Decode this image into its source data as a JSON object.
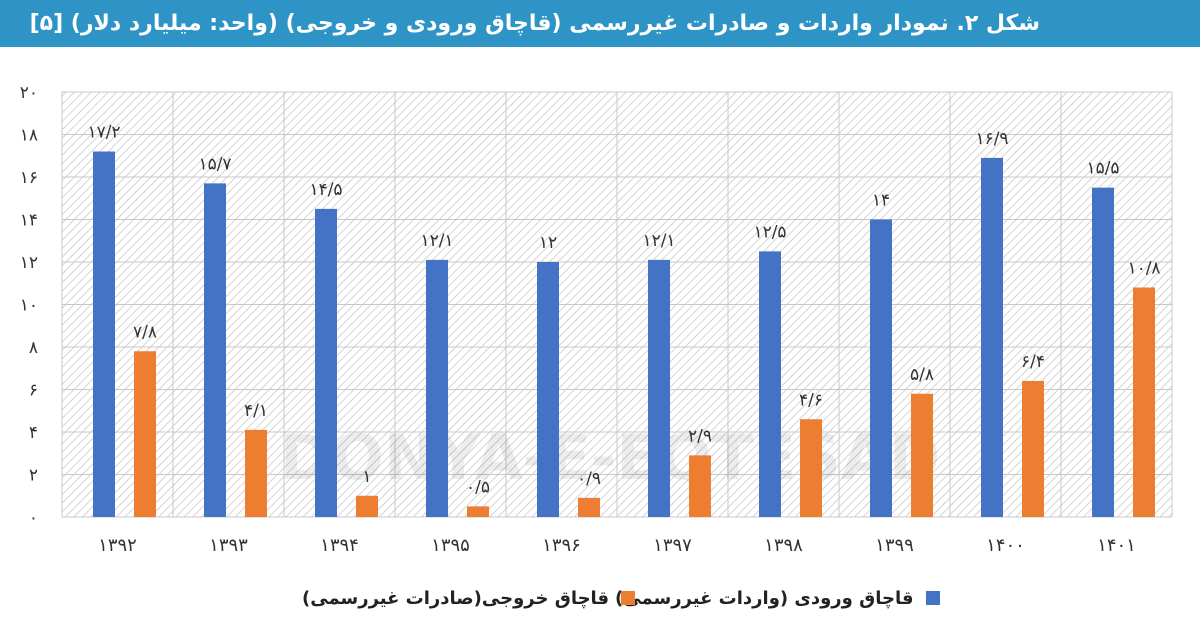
{
  "title": "شکل ۲. نمودار واردات و صادرات غیررسمی (قاچاق ورودی و خروجی) (واحد: میلیارد دلار) [۵]",
  "colors": {
    "title_bar": "#2e94c6",
    "series_in": "#4472c4",
    "series_out": "#ed7d31"
  },
  "watermark_text": "DONYA-E-EQTESAD",
  "chart_data": {
    "type": "bar",
    "categories": [
      "۱۳۹۲",
      "۱۳۹۳",
      "۱۳۹۴",
      "۱۳۹۵",
      "۱۳۹۶",
      "۱۳۹۷",
      "۱۳۹۸",
      "۱۳۹۹",
      "۱۴۰۰",
      "۱۴۰۱"
    ],
    "series": [
      {
        "name": "قاچاق ورودی (واردات غیررسمی)",
        "values": [
          17.2,
          15.7,
          14.5,
          12.1,
          12,
          12.1,
          12.5,
          14,
          16.9,
          15.5
        ],
        "labels": [
          "۱۷/۲",
          "۱۵/۷",
          "۱۴/۵",
          "۱۲/۱",
          "۱۲",
          "۱۲/۱",
          "۱۲/۵",
          "۱۴",
          "۱۶/۹",
          "۱۵/۵"
        ]
      },
      {
        "name": "قاچاق خروجی(صادرات غیررسمی)",
        "values": [
          7.8,
          4.1,
          1,
          0.5,
          0.9,
          2.9,
          4.6,
          5.8,
          6.4,
          10.8
        ],
        "labels": [
          "۷/۸",
          "۴/۱",
          "۱",
          "۰/۵",
          "۰/۹",
          "۲/۹",
          "۴/۶",
          "۵/۸",
          "۶/۴",
          "۱۰/۸"
        ]
      }
    ],
    "ylim": [
      0,
      20
    ],
    "yticks": [
      "۰",
      "۲",
      "۴",
      "۶",
      "۸",
      "۱۰",
      "۱۲",
      "۱۴",
      "۱۶",
      "۱۸",
      "۲۰"
    ],
    "ytick_values": [
      0,
      2,
      4,
      6,
      8,
      10,
      12,
      14,
      16,
      18,
      20
    ],
    "grid": true,
    "legend_position": "bottom"
  }
}
